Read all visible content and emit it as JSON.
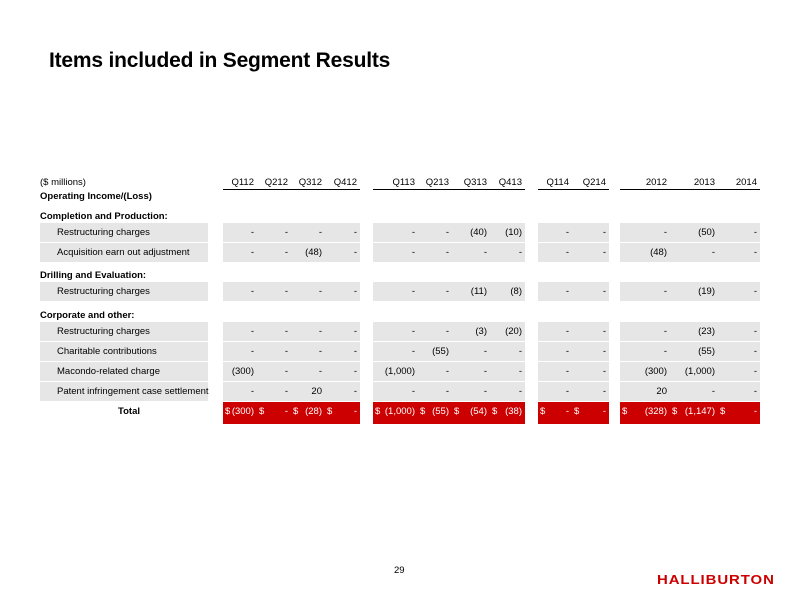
{
  "title": "Items included in Segment Results",
  "header": {
    "unit_label": "($ millions)",
    "columns": [
      "Q112",
      "Q212",
      "Q312",
      "Q412",
      "Q113",
      "Q213",
      "Q313",
      "Q413",
      "Q114",
      "Q214",
      "2012",
      "2013",
      "2014"
    ]
  },
  "operating_label": "Operating Income/(Loss)",
  "sections": [
    {
      "label": "Completion and Production:",
      "rows": [
        {
          "label": "Restructuring charges",
          "values": [
            "-",
            "-",
            "-",
            "-",
            "-",
            "-",
            "(40)",
            "(10)",
            "-",
            "-",
            "-",
            "(50)",
            "-"
          ]
        },
        {
          "label": "Acquisition earn out adjustment",
          "values": [
            "-",
            "-",
            "(48)",
            "-",
            "-",
            "-",
            "-",
            "-",
            "-",
            "-",
            "(48)",
            "-",
            "-"
          ]
        }
      ]
    },
    {
      "label": "Drilling and Evaluation:",
      "rows": [
        {
          "label": "Restructuring charges",
          "values": [
            "-",
            "-",
            "-",
            "-",
            "-",
            "-",
            "(11)",
            "(8)",
            "-",
            "-",
            "-",
            "(19)",
            "-"
          ]
        }
      ]
    },
    {
      "label": "Corporate and other:",
      "rows": [
        {
          "label": "Restructuring charges",
          "values": [
            "-",
            "-",
            "-",
            "-",
            "-",
            "-",
            "(3)",
            "(20)",
            "-",
            "-",
            "-",
            "(23)",
            "-"
          ]
        },
        {
          "label": "Charitable contributions",
          "values": [
            "-",
            "-",
            "-",
            "-",
            "-",
            "(55)",
            "-",
            "-",
            "-",
            "-",
            "-",
            "(55)",
            "-"
          ]
        },
        {
          "label": "Macondo-related charge",
          "values": [
            "(300)",
            "-",
            "-",
            "-",
            "(1,000)",
            "-",
            "-",
            "-",
            "-",
            "-",
            "(300)",
            "(1,000)",
            "-"
          ]
        },
        {
          "label": "Patent infringement case settlement",
          "values": [
            "-",
            "-",
            "20",
            "-",
            "-",
            "-",
            "-",
            "-",
            "-",
            "-",
            "20",
            "-",
            "-"
          ]
        }
      ]
    }
  ],
  "total": {
    "label": "Total",
    "currency": "$",
    "values": [
      "(300)",
      "-",
      "(28)",
      "-",
      "(1,000)",
      "(55)",
      "(54)",
      "(38)",
      "-",
      "-",
      "(328)",
      "(1,147)",
      "-"
    ]
  },
  "page_number": "29",
  "logo_text": "HALLIBURTON",
  "colors": {
    "accent": "#cc0000",
    "row_fill": "#e6e6e6"
  }
}
